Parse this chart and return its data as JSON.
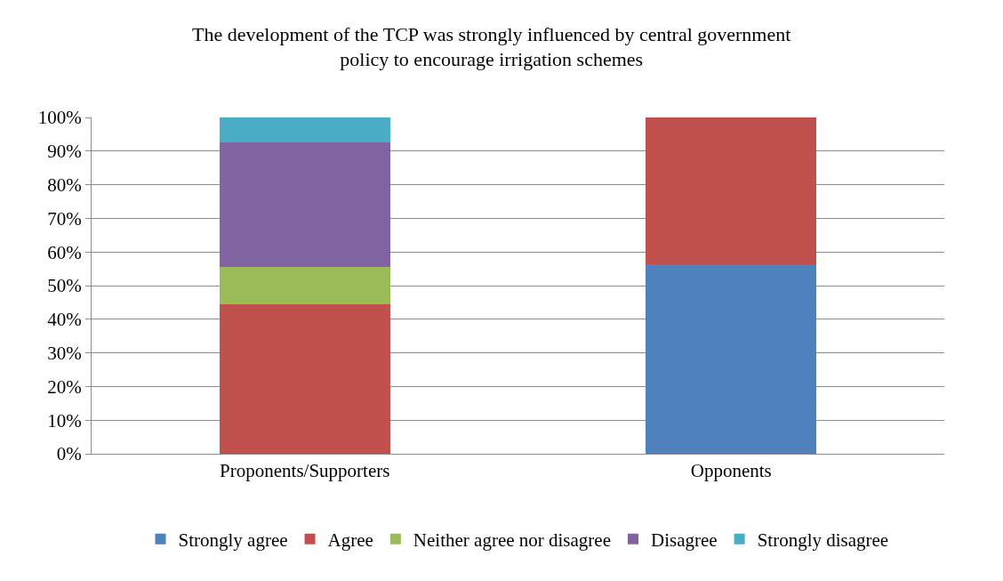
{
  "chart_data": {
    "type": "bar",
    "title": "The development of the TCP was strongly influenced by central government\npolicy to encourage irrigation schemes",
    "categories": [
      "Proponents/Supporters",
      "Opponents"
    ],
    "stacked": true,
    "series": [
      {
        "name": "Strongly agree",
        "color": "#4f81bd",
        "values": [
          0,
          56.3
        ]
      },
      {
        "name": "Agree",
        "color": "#c0504d",
        "values": [
          44.4,
          43.7
        ]
      },
      {
        "name": "Neither agree nor disagree",
        "color": "#9bbb59",
        "values": [
          11.1,
          0
        ]
      },
      {
        "name": "Disagree",
        "color": "#8064a2",
        "values": [
          37.1,
          0
        ]
      },
      {
        "name": "Strongly disagree",
        "color": "#4bacc6",
        "values": [
          7.4,
          0
        ]
      }
    ],
    "ylim": [
      0,
      100
    ],
    "yticks": [
      {
        "value": 0,
        "label": "0%"
      },
      {
        "value": 10,
        "label": "10%"
      },
      {
        "value": 20,
        "label": "20%"
      },
      {
        "value": 30,
        "label": "30%"
      },
      {
        "value": 40,
        "label": "40%"
      },
      {
        "value": 50,
        "label": "50%"
      },
      {
        "value": 60,
        "label": "60%"
      },
      {
        "value": 70,
        "label": "70%"
      },
      {
        "value": 80,
        "label": "80%"
      },
      {
        "value": 90,
        "label": "90%"
      },
      {
        "value": 100,
        "label": "100%"
      }
    ],
    "grid": "y",
    "legend": "bottom"
  }
}
